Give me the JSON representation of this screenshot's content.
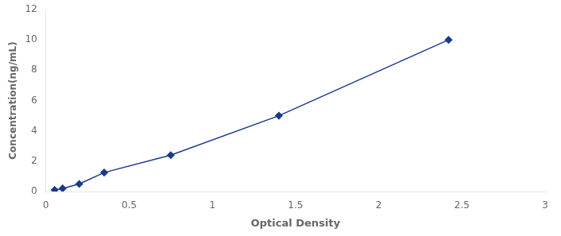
{
  "chart_data": {
    "type": "line",
    "x": [
      0.052,
      0.1,
      0.2,
      0.35,
      0.75,
      1.4,
      2.42
    ],
    "values": [
      0.1,
      0.2,
      0.5,
      1.25,
      2.4,
      5.0,
      10.0
    ],
    "color": "#1a3a8a",
    "marker": "diamond",
    "xlabel": "Optical Density",
    "ylabel": "Concentration(ng/mL)",
    "xlim": [
      0,
      3
    ],
    "ylim": [
      0,
      12
    ],
    "xticks": [
      0,
      0.5,
      1,
      1.5,
      2,
      2.5,
      3
    ],
    "yticks": [
      0,
      2,
      4,
      6,
      8,
      10,
      12
    ],
    "grid": false
  }
}
